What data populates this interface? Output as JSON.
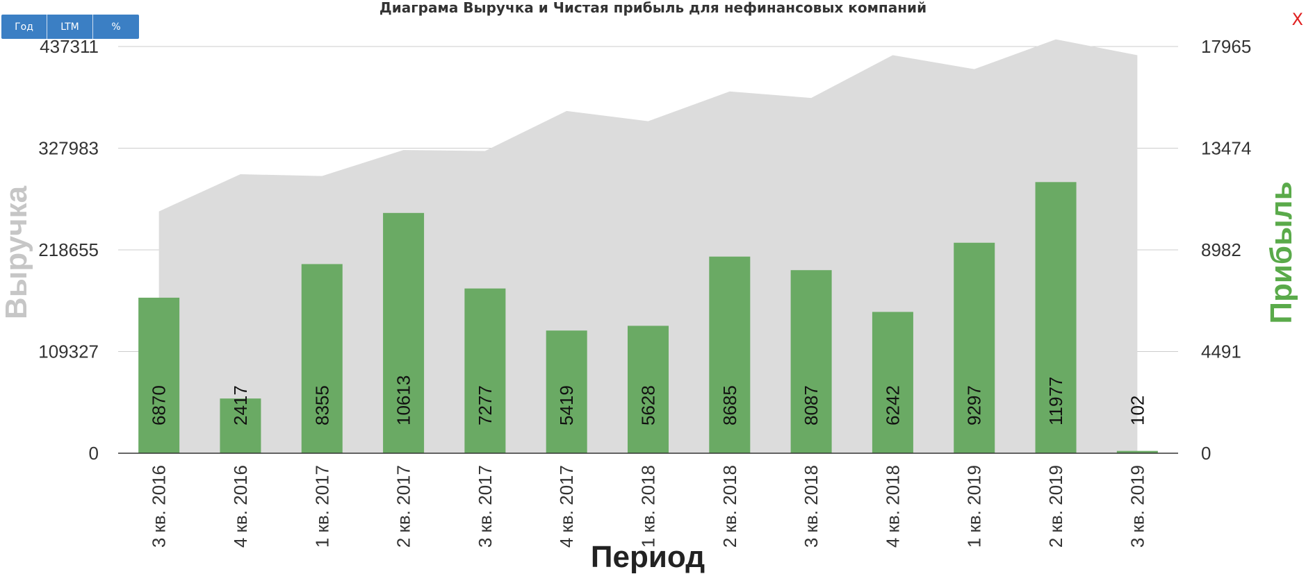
{
  "ui": {
    "buttons": [
      {
        "label": "Год"
      },
      {
        "label": "LTM"
      },
      {
        "label": "%"
      }
    ],
    "close_label": "X"
  },
  "chart_data": {
    "type": "bar",
    "title": "Диаграма Выручка и Чистая прибыль для нефинансовых компаний",
    "xlabel": "Период",
    "ylabel_left": "Выручка",
    "ylabel_right": "Прибыль",
    "categories": [
      "3 кв. 2016",
      "4 кв. 2016",
      "1 кв. 2017",
      "2 кв. 2017",
      "3 кв. 2017",
      "4 кв. 2017",
      "1 кв. 2018",
      "2 кв. 2018",
      "3 кв. 2018",
      "4 кв. 2018",
      "1 кв. 2019",
      "2 кв. 2019",
      "3 кв. 2019"
    ],
    "left_axis": {
      "ticks": [
        "0",
        "109327",
        "218655",
        "327983",
        "437311"
      ],
      "ylim": [
        0,
        437311
      ]
    },
    "right_axis": {
      "ticks": [
        "0",
        "4491",
        "8982",
        "13474",
        "17965"
      ],
      "ylim": [
        0,
        17965
      ]
    },
    "series": [
      {
        "name": "Выручка",
        "type": "area",
        "axis": "left",
        "color": "#dcdcdc",
        "values": [
          260000,
          300000,
          298000,
          326000,
          325000,
          368000,
          357000,
          389000,
          382000,
          428000,
          413000,
          445000,
          428000
        ]
      },
      {
        "name": "Прибыль",
        "type": "bar",
        "axis": "right",
        "color": "#6aaa64",
        "values": [
          6870,
          2417,
          8355,
          10613,
          7277,
          5419,
          5628,
          8685,
          8087,
          6242,
          9297,
          11977,
          102
        ],
        "labels": [
          "6870",
          "2417",
          "8355",
          "10613",
          "7277",
          "5419",
          "5628",
          "8685",
          "8087",
          "6242",
          "9297",
          "11977",
          "102"
        ]
      }
    ],
    "grid": true,
    "legend": "none"
  }
}
